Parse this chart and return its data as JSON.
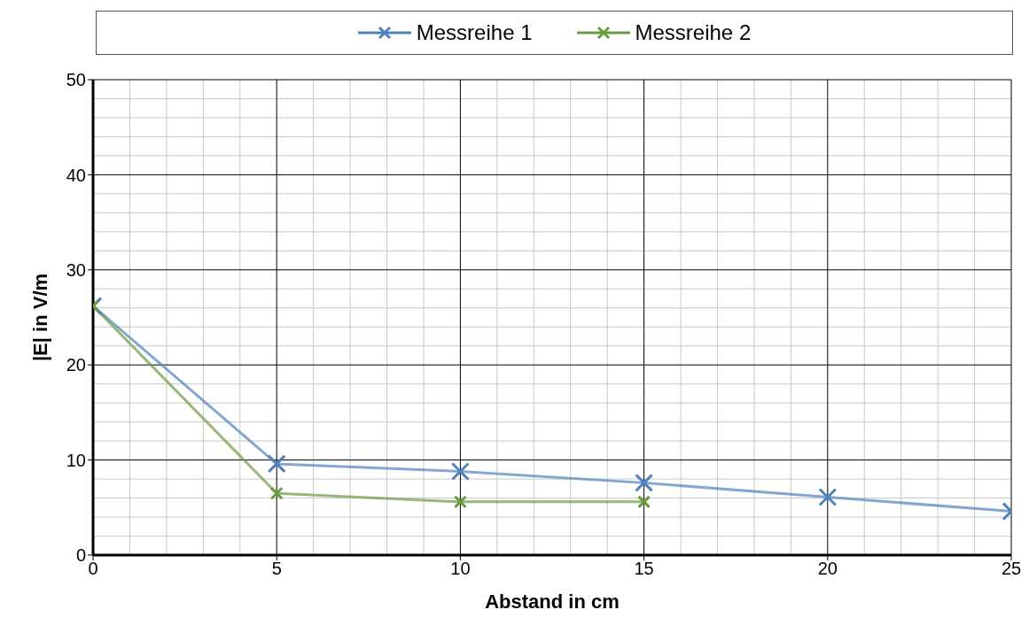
{
  "chart_data": {
    "type": "line",
    "xlabel": "Abstand in cm",
    "ylabel": "|E| in V/m",
    "x": [
      0,
      5,
      10,
      15,
      20,
      25
    ],
    "series": [
      {
        "name": "Messreihe 1",
        "color": "#4f81bd",
        "values": [
          26.2,
          9.6,
          8.8,
          7.6,
          6.1,
          4.6
        ]
      },
      {
        "name": "Messreihe 2",
        "color": "#6a9a3e",
        "values": [
          26.2,
          6.5,
          5.6,
          5.6,
          null,
          null
        ]
      }
    ],
    "xlim": [
      0,
      25
    ],
    "xticks": [
      0,
      5,
      10,
      15,
      20,
      25
    ],
    "ylim": [
      0,
      50
    ],
    "yticks": [
      0,
      10,
      20,
      30,
      40,
      50
    ],
    "grid": true,
    "legend": "top",
    "marker": "cross",
    "line_style": "solid"
  }
}
